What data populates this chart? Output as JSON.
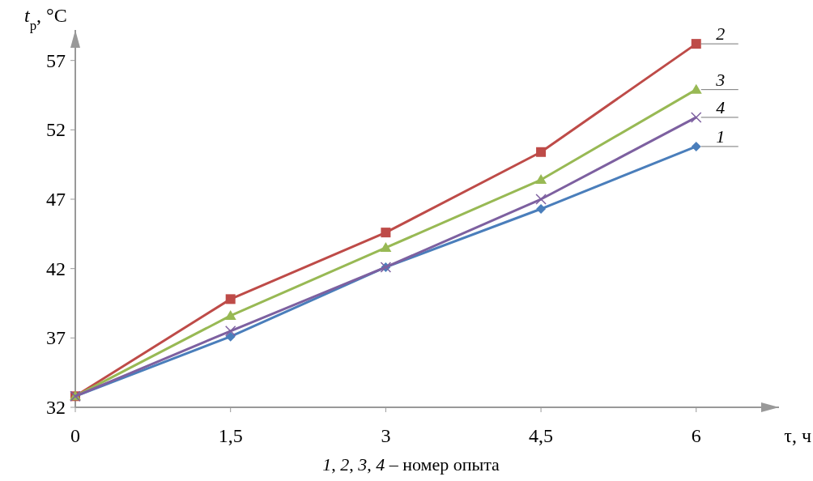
{
  "chart_data": {
    "type": "line",
    "xlabel": "τ, ч",
    "ylabel": "t$_{р}$, °C",
    "x": [
      0,
      1.5,
      3,
      4.5,
      6
    ],
    "xlim": [
      0,
      6.8
    ],
    "xticks": [
      0,
      {
        "value": 1.5,
        "label": "1,5"
      },
      3,
      {
        "value": 4.5,
        "label": "4,5"
      },
      6
    ],
    "ylim": [
      32,
      59.2
    ],
    "yticks": [
      32,
      37,
      42,
      47,
      52,
      57
    ],
    "grid": false,
    "legend": false,
    "series": [
      {
        "name": "1",
        "color": "#4a7ebb",
        "marker": "diamond",
        "values": [
          32.8,
          37.1,
          42.1,
          46.3,
          50.8
        ]
      },
      {
        "name": "2",
        "color": "#be4b48",
        "marker": "square",
        "values": [
          32.8,
          39.8,
          44.6,
          50.4,
          58.2
        ]
      },
      {
        "name": "3",
        "color": "#98b954",
        "marker": "triangle",
        "values": [
          32.8,
          38.6,
          43.5,
          48.4,
          54.9
        ]
      },
      {
        "name": "4",
        "color": "#7d60a0",
        "marker": "cross",
        "values": [
          32.8,
          37.5,
          42.1,
          47.0,
          52.9
        ]
      }
    ],
    "annotations": [
      "1, 2, 3, 4 – номер опыта"
    ]
  }
}
